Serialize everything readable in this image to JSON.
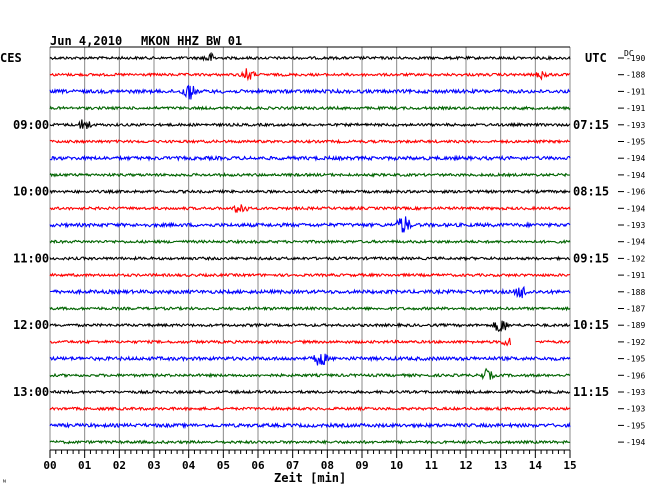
{
  "header": {
    "date": "Jun 4,2010",
    "station": "MKON HHZ BW 01"
  },
  "left_timezone": "CES",
  "right_timezone": "UTC",
  "dc_label": "DC",
  "corner_mark": "ᴺ",
  "chart_data": {
    "type": "line",
    "title": "Jun 4,2010   MKON HHZ BW 01",
    "xlabel": "Zeit [min]",
    "xlim": [
      0,
      15
    ],
    "x_ticks": [
      "00",
      "01",
      "02",
      "03",
      "04",
      "05",
      "06",
      "07",
      "08",
      "09",
      "10",
      "11",
      "12",
      "13",
      "14",
      "15"
    ],
    "grid": true,
    "trace_colors": [
      "#000000",
      "#ff0000",
      "#0000ff",
      "#006400"
    ],
    "left_hour_labels": [
      {
        "trace": 4,
        "text": "09:00"
      },
      {
        "trace": 8,
        "text": "10:00"
      },
      {
        "trace": 12,
        "text": "11:00"
      },
      {
        "trace": 16,
        "text": "12:00"
      },
      {
        "trace": 20,
        "text": "13:00"
      }
    ],
    "right_hour_labels": [
      {
        "trace": 4,
        "text": "07:15"
      },
      {
        "trace": 8,
        "text": "08:15"
      },
      {
        "trace": 12,
        "text": "09:15"
      },
      {
        "trace": 16,
        "text": "10:15"
      },
      {
        "trace": 20,
        "text": "11:15"
      }
    ],
    "dc_offsets": [
      -190,
      -188,
      -191,
      -191,
      -193,
      -195,
      -194,
      -194,
      -196,
      -194,
      -193,
      -194,
      -192,
      -191,
      -188,
      -187,
      -189,
      -192,
      -195,
      -196,
      -193,
      -193,
      -195,
      -194
    ],
    "events": [
      {
        "trace": 0,
        "minute": 4.6,
        "amp": 1.2
      },
      {
        "trace": 1,
        "minute": 5.7,
        "amp": 1.6
      },
      {
        "trace": 1,
        "minute": 14.2,
        "amp": 1.0
      },
      {
        "trace": 2,
        "minute": 4.0,
        "amp": 2.2
      },
      {
        "trace": 4,
        "minute": 1.0,
        "amp": 1.6
      },
      {
        "trace": 9,
        "minute": 5.5,
        "amp": 1.6
      },
      {
        "trace": 10,
        "minute": 10.2,
        "amp": 2.6
      },
      {
        "trace": 14,
        "minute": 13.6,
        "amp": 1.6
      },
      {
        "trace": 16,
        "minute": 13.0,
        "amp": 2.2
      },
      {
        "trace": 17,
        "minute": 13.2,
        "amp": 1.0
      },
      {
        "trace": 18,
        "minute": 7.8,
        "amp": 2.0
      },
      {
        "trace": 19,
        "minute": 12.6,
        "amp": 1.4
      }
    ],
    "gaps": [
      {
        "trace": 17,
        "from": 13.3,
        "to": 14.0
      }
    ]
  }
}
